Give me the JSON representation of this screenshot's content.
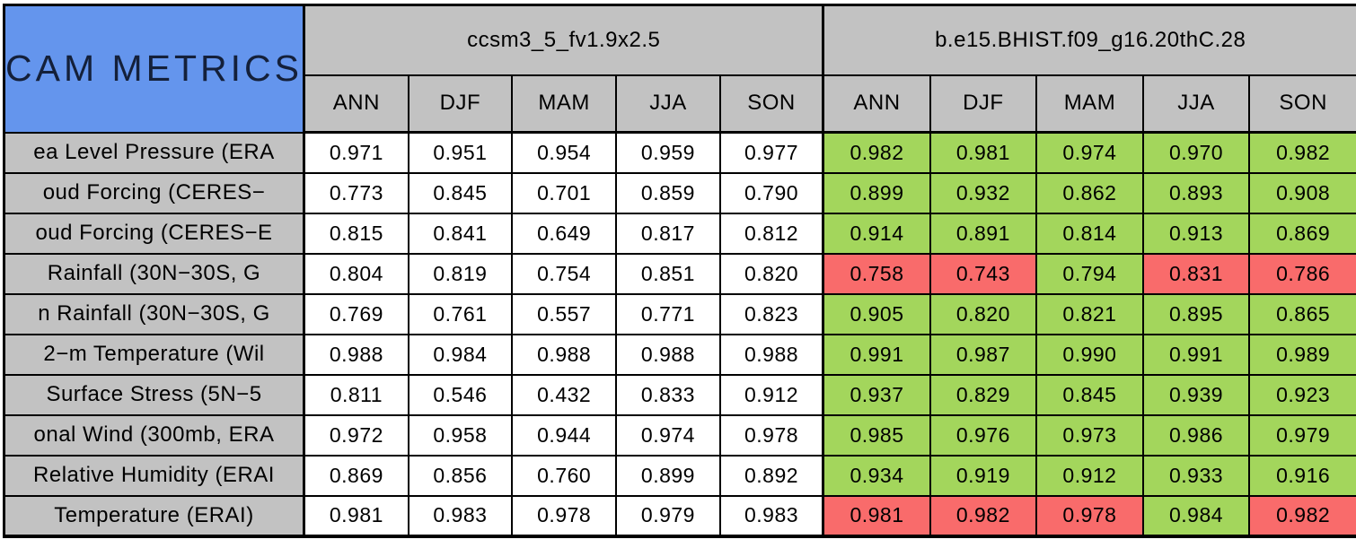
{
  "colors": {
    "header_blue": "#6495ed",
    "header_grey": "#c2c2c2",
    "cell_white": "#ffffff",
    "cell_green": "#a3d65c",
    "cell_red": "#f96b6b",
    "border_black": "#000000"
  },
  "chart_data": {
    "type": "table",
    "title": "CAM METRICS",
    "column_groups": [
      "ccsm3_5_fv1.9x2.5",
      "b.e15.BHIST.f09_g16.20thC.28"
    ],
    "seasons": [
      "ANN",
      "DJF",
      "MAM",
      "JJA",
      "SON"
    ],
    "rows": [
      {
        "label": "ea Level Pressure (ERA",
        "ccsm_values": [
          "0.971",
          "0.951",
          "0.954",
          "0.959",
          "0.977"
        ],
        "ccsm_colors": [
          "white",
          "white",
          "white",
          "white",
          "white"
        ],
        "bhist_values": [
          "0.982",
          "0.981",
          "0.974",
          "0.970",
          "0.982"
        ],
        "bhist_colors": [
          "green",
          "green",
          "green",
          "green",
          "green"
        ]
      },
      {
        "label": "oud Forcing (CERES−",
        "ccsm_values": [
          "0.773",
          "0.845",
          "0.701",
          "0.859",
          "0.790"
        ],
        "ccsm_colors": [
          "white",
          "white",
          "white",
          "white",
          "white"
        ],
        "bhist_values": [
          "0.899",
          "0.932",
          "0.862",
          "0.893",
          "0.908"
        ],
        "bhist_colors": [
          "green",
          "green",
          "green",
          "green",
          "green"
        ]
      },
      {
        "label": "oud Forcing (CERES−E",
        "ccsm_values": [
          "0.815",
          "0.841",
          "0.649",
          "0.817",
          "0.812"
        ],
        "ccsm_colors": [
          "white",
          "white",
          "white",
          "white",
          "white"
        ],
        "bhist_values": [
          "0.914",
          "0.891",
          "0.814",
          "0.913",
          "0.869"
        ],
        "bhist_colors": [
          "green",
          "green",
          "green",
          "green",
          "green"
        ]
      },
      {
        "label": "Rainfall (30N−30S, G",
        "ccsm_values": [
          "0.804",
          "0.819",
          "0.754",
          "0.851",
          "0.820"
        ],
        "ccsm_colors": [
          "white",
          "white",
          "white",
          "white",
          "white"
        ],
        "bhist_values": [
          "0.758",
          "0.743",
          "0.794",
          "0.831",
          "0.786"
        ],
        "bhist_colors": [
          "red",
          "red",
          "green",
          "red",
          "red"
        ]
      },
      {
        "label": "n Rainfall (30N−30S, G",
        "ccsm_values": [
          "0.769",
          "0.761",
          "0.557",
          "0.771",
          "0.823"
        ],
        "ccsm_colors": [
          "white",
          "white",
          "white",
          "white",
          "white"
        ],
        "bhist_values": [
          "0.905",
          "0.820",
          "0.821",
          "0.895",
          "0.865"
        ],
        "bhist_colors": [
          "green",
          "green",
          "green",
          "green",
          "green"
        ]
      },
      {
        "label": "2−m Temperature (Wil",
        "ccsm_values": [
          "0.988",
          "0.984",
          "0.988",
          "0.988",
          "0.988"
        ],
        "ccsm_colors": [
          "white",
          "white",
          "white",
          "white",
          "white"
        ],
        "bhist_values": [
          "0.991",
          "0.987",
          "0.990",
          "0.991",
          "0.989"
        ],
        "bhist_colors": [
          "green",
          "green",
          "green",
          "green",
          "green"
        ]
      },
      {
        "label": "Surface Stress (5N−5",
        "ccsm_values": [
          "0.811",
          "0.546",
          "0.432",
          "0.833",
          "0.912"
        ],
        "ccsm_colors": [
          "white",
          "white",
          "white",
          "white",
          "white"
        ],
        "bhist_values": [
          "0.937",
          "0.829",
          "0.845",
          "0.939",
          "0.923"
        ],
        "bhist_colors": [
          "green",
          "green",
          "green",
          "green",
          "green"
        ]
      },
      {
        "label": "onal Wind (300mb, ERA",
        "ccsm_values": [
          "0.972",
          "0.958",
          "0.944",
          "0.974",
          "0.978"
        ],
        "ccsm_colors": [
          "white",
          "white",
          "white",
          "white",
          "white"
        ],
        "bhist_values": [
          "0.985",
          "0.976",
          "0.973",
          "0.986",
          "0.979"
        ],
        "bhist_colors": [
          "green",
          "green",
          "green",
          "green",
          "green"
        ]
      },
      {
        "label": "Relative Humidity (ERAI",
        "ccsm_values": [
          "0.869",
          "0.856",
          "0.760",
          "0.899",
          "0.892"
        ],
        "ccsm_colors": [
          "white",
          "white",
          "white",
          "white",
          "white"
        ],
        "bhist_values": [
          "0.934",
          "0.919",
          "0.912",
          "0.933",
          "0.916"
        ],
        "bhist_colors": [
          "green",
          "green",
          "green",
          "green",
          "green"
        ]
      },
      {
        "label": "Temperature (ERAI)",
        "ccsm_values": [
          "0.981",
          "0.983",
          "0.978",
          "0.979",
          "0.983"
        ],
        "ccsm_colors": [
          "white",
          "white",
          "white",
          "white",
          "white"
        ],
        "bhist_values": [
          "0.981",
          "0.982",
          "0.978",
          "0.984",
          "0.982"
        ],
        "bhist_colors": [
          "red",
          "red",
          "red",
          "green",
          "red"
        ]
      }
    ]
  }
}
